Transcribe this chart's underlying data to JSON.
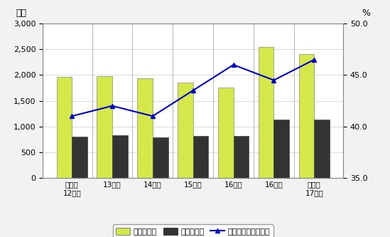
{
  "categories": [
    "旧浜松\n12年度",
    "13年度",
    "14年度",
    "15年度",
    "16年度",
    "16年度",
    "新浜松\n17年度"
  ],
  "saishutsu": [
    1960,
    1980,
    1940,
    1860,
    1760,
    2540,
    2410
  ],
  "gimueki": [
    800,
    830,
    790,
    810,
    810,
    1130,
    1130
  ],
  "ratio": [
    41.0,
    42.0,
    41.0,
    43.5,
    46.0,
    44.5,
    46.5
  ],
  "bar_color_saishutsu": "#d4e84a",
  "bar_color_gimueki": "#333333",
  "line_color": "#0000cc",
  "left_ylim": [
    0,
    3000
  ],
  "left_yticks": [
    0,
    500,
    1000,
    1500,
    2000,
    2500,
    3000
  ],
  "right_ylim": [
    35.0,
    50.0
  ],
  "right_yticks": [
    35.0,
    40.0,
    45.0,
    50.0
  ],
  "left_ylabel": "億円",
  "right_ylabel": "%",
  "legend_labels": [
    "歳出決算額",
    "義務的経費",
    "決算額に占める割合"
  ],
  "background_color": "#f2f2f2",
  "plot_bg_color": "#ffffff",
  "border_color": "#aaaaaa"
}
